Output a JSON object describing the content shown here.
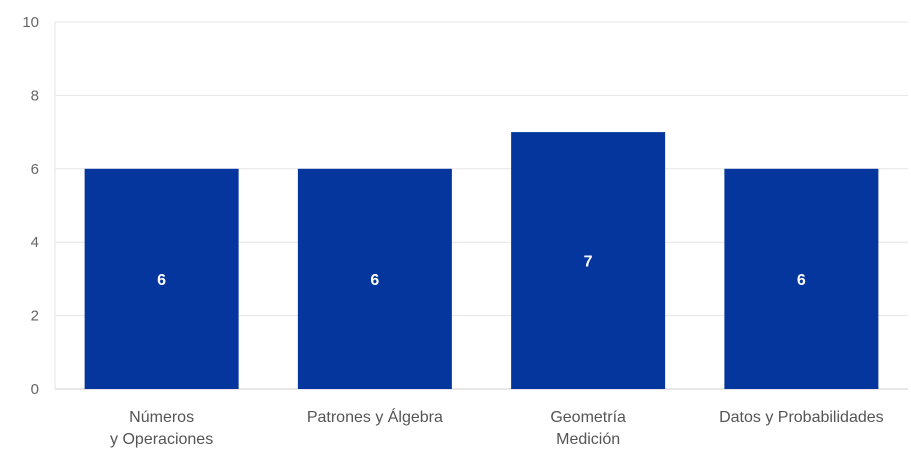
{
  "chart_data": {
    "type": "bar",
    "categories": [
      [
        "Números",
        "y Operaciones"
      ],
      [
        "Patrones y Álgebra"
      ],
      [
        "Geometría",
        "Medición"
      ],
      [
        "Datos y Probabilidades"
      ]
    ],
    "values": [
      6,
      6,
      7,
      6
    ],
    "data_labels": [
      "6",
      "6",
      "7",
      "6"
    ],
    "title": "",
    "xlabel": "",
    "ylabel": "",
    "ylim": [
      0,
      10
    ],
    "yticks": [
      0,
      2,
      4,
      6,
      8,
      10
    ],
    "grid": true,
    "legend": "none",
    "bar_color": "#05369d"
  }
}
